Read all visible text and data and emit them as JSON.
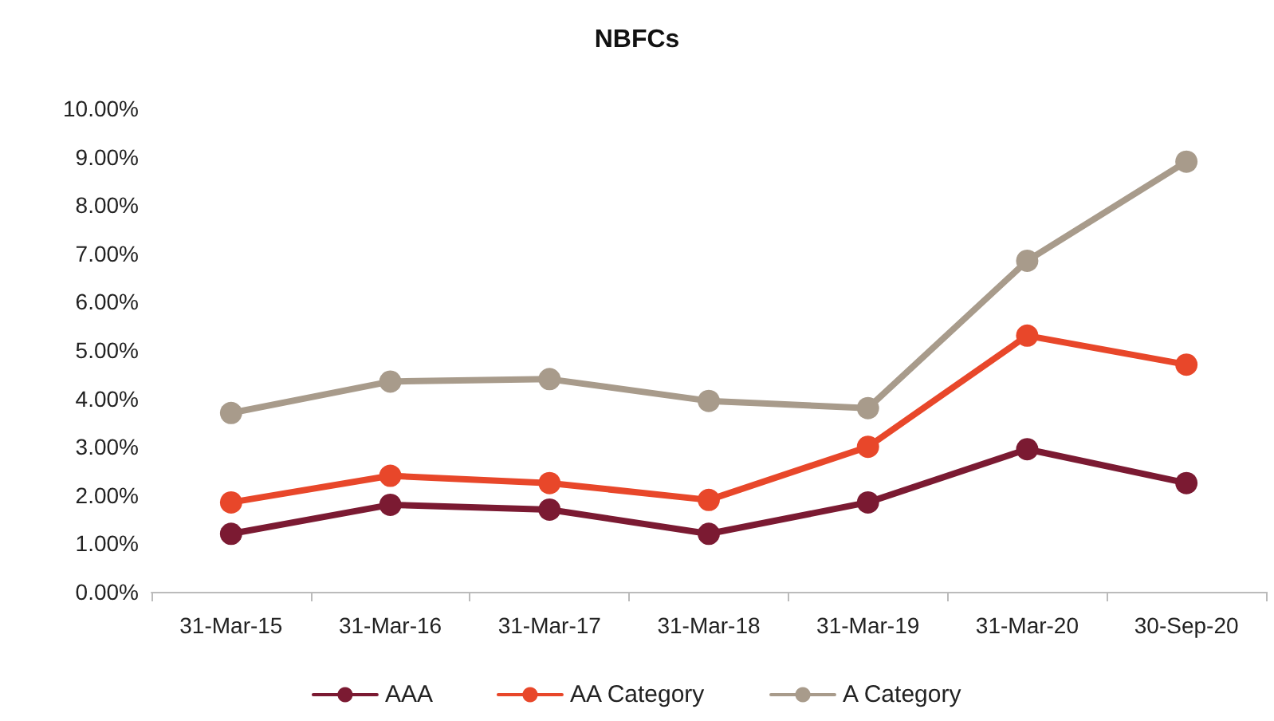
{
  "chart_data": {
    "type": "line",
    "title": "NBFCs",
    "categories": [
      "31-Mar-15",
      "31-Mar-16",
      "31-Mar-17",
      "31-Mar-18",
      "31-Mar-19",
      "31-Mar-20",
      "30-Sep-20"
    ],
    "series": [
      {
        "name": "AAA",
        "color": "#7b1a32",
        "values": [
          1.2,
          1.8,
          1.7,
          1.2,
          1.85,
          2.95,
          2.25
        ]
      },
      {
        "name": "AA Category",
        "color": "#e8472a",
        "values": [
          1.85,
          2.4,
          2.25,
          1.9,
          3.0,
          5.3,
          4.7
        ]
      },
      {
        "name": "A Category",
        "color": "#a89b8b",
        "values": [
          3.7,
          4.35,
          4.4,
          3.95,
          3.8,
          6.85,
          8.9
        ]
      }
    ],
    "ylim": [
      0,
      10
    ],
    "yticks": [
      {
        "value": 0,
        "label": "0.00%"
      },
      {
        "value": 1,
        "label": "1.00%"
      },
      {
        "value": 2,
        "label": "2.00%"
      },
      {
        "value": 3,
        "label": "3.00%"
      },
      {
        "value": 4,
        "label": "4.00%"
      },
      {
        "value": 5,
        "label": "5.00%"
      },
      {
        "value": 6,
        "label": "6.00%"
      },
      {
        "value": 7,
        "label": "7.00%"
      },
      {
        "value": 8,
        "label": "8.00%"
      },
      {
        "value": 9,
        "label": "9.00%"
      },
      {
        "value": 10,
        "label": "10.00%"
      }
    ],
    "grid": false,
    "legend": "bottom",
    "marker": "circle",
    "line_style": "solid"
  }
}
